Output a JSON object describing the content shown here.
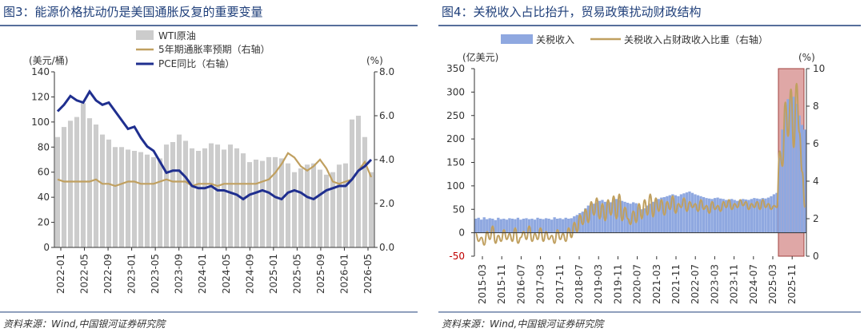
{
  "chart_data": [
    {
      "type": "bar",
      "title": "图3：能源价格扰动仍是美国通胀反复的重要变量",
      "source": "资料来源：Wind,中国银河证券研究院",
      "y_left_unit": "(美元/桶)",
      "y_right_unit": "(%)",
      "ylim_left": [
        0,
        140
      ],
      "ylim_right": [
        0,
        8
      ],
      "left_ticks": [
        "0",
        "20",
        "40",
        "60",
        "80",
        "100",
        "120",
        "140"
      ],
      "right_ticks": [
        "0.0",
        "2.0",
        "4.0",
        "6.0",
        "8.0"
      ],
      "x_tick_labels": [
        "2022-01",
        "2022-05",
        "2022-09",
        "2023-01",
        "2023-05",
        "2023-09",
        "2024-01",
        "2024-05",
        "2024-09",
        "2025-01",
        "2025-05",
        "2025-09",
        "2026-01",
        "2026-05"
      ],
      "legend": [
        "WTI原油",
        "5年期通胀率预期（右轴）",
        "PCE同比（右轴）"
      ],
      "colors": {
        "bars": "#cccccc",
        "breakeven": "#c0a060",
        "pce": "#1f2f8f"
      },
      "series": [
        {
          "name": "WTI原油",
          "axis": "left",
          "kind": "bar",
          "values": [
            88,
            96,
            101,
            104,
            115,
            103,
            98,
            90,
            86,
            80,
            80,
            78,
            77,
            76,
            74,
            72,
            71,
            82,
            84,
            90,
            85,
            79,
            77,
            79,
            83,
            82,
            78,
            82,
            79,
            75,
            68,
            70,
            69,
            72,
            72,
            71,
            67,
            60,
            63,
            66,
            67,
            62,
            58,
            60,
            66,
            67,
            102,
            105,
            88,
            60
          ]
        },
        {
          "name": "5年期通胀率预期（右轴）",
          "axis": "right",
          "kind": "line",
          "values": [
            3.1,
            3.0,
            3.0,
            3.0,
            3.0,
            3.0,
            3.1,
            2.9,
            2.9,
            2.8,
            2.9,
            3.0,
            3.0,
            2.9,
            2.9,
            2.9,
            3.0,
            3.1,
            3.0,
            3.0,
            3.0,
            2.8,
            2.9,
            2.9,
            2.9,
            2.8,
            2.9,
            2.9,
            2.9,
            2.9,
            2.9,
            2.9,
            3.0,
            3.1,
            3.4,
            3.8,
            4.3,
            4.1,
            3.7,
            3.5,
            3.7,
            4.0,
            3.6,
            3.0,
            2.9,
            3.0,
            3.1,
            3.5,
            3.9,
            3.2
          ]
        },
        {
          "name": "PCE同比（右轴）",
          "axis": "right",
          "kind": "line",
          "values": [
            6.2,
            6.5,
            6.9,
            6.7,
            6.6,
            7.1,
            6.7,
            6.5,
            6.6,
            6.2,
            5.8,
            5.4,
            5.5,
            5.0,
            4.6,
            4.4,
            3.9,
            3.4,
            3.5,
            3.5,
            3.2,
            2.8,
            2.7,
            2.7,
            2.8,
            2.6,
            2.6,
            2.5,
            2.4,
            2.2,
            2.4,
            2.5,
            2.6,
            2.5,
            2.3,
            2.2,
            2.5,
            2.6,
            2.5,
            2.3,
            2.2,
            2.4,
            2.6,
            2.7,
            2.8,
            2.8,
            3.1,
            3.5,
            3.7,
            4.0
          ]
        }
      ]
    },
    {
      "type": "bar",
      "title": "图4：关税收入占比抬升，贸易政策扰动财政结构",
      "source": "资料来源：Wind,中国银河证券研究院",
      "y_left_unit": "(亿美元)",
      "y_right_unit": "(%)",
      "ylim_left": [
        -50,
        350
      ],
      "ylim_right": [
        0,
        10
      ],
      "left_ticks": [
        "-50",
        "0",
        "50",
        "100",
        "150",
        "200",
        "250",
        "300",
        "350"
      ],
      "right_ticks": [
        "0",
        "2",
        "4",
        "6",
        "8",
        "10"
      ],
      "x_tick_labels": [
        "2015-03",
        "2015-11",
        "2016-07",
        "2017-03",
        "2017-11",
        "2018-07",
        "2019-03",
        "2019-11",
        "2020-07",
        "2021-03",
        "2021-11",
        "2022-07",
        "2023-03",
        "2023-11",
        "2024-07",
        "2025-03",
        "2025-11"
      ],
      "legend": [
        "关税收入",
        "关税收入占财政收入比重（右轴）"
      ],
      "colors": {
        "bars": "#8fa8e0",
        "ratio": "#c0a060",
        "highlight": "#c0504d"
      },
      "series": [
        {
          "name": "关税收入",
          "axis": "left",
          "kind": "bar",
          "values": [
            30,
            32,
            28,
            33,
            29,
            31,
            30,
            27,
            32,
            29,
            30,
            28,
            31,
            30,
            29,
            32,
            28,
            30,
            31,
            29,
            30,
            28,
            32,
            30,
            29,
            31,
            30,
            28,
            33,
            30,
            31,
            29,
            32,
            30,
            31,
            35,
            38,
            42,
            45,
            52,
            58,
            60,
            62,
            65,
            68,
            70,
            66,
            63,
            65,
            70,
            72,
            70,
            68,
            66,
            64,
            62,
            65,
            63,
            55,
            50,
            52,
            58,
            62,
            66,
            70,
            72,
            75,
            76,
            78,
            80,
            82,
            80,
            78,
            82,
            84,
            86,
            88,
            85,
            82,
            80,
            78,
            76,
            74,
            73,
            72,
            74,
            75,
            73,
            72,
            70,
            71,
            72,
            70,
            68,
            70,
            72,
            71,
            70,
            72,
            74,
            73,
            72,
            74,
            73,
            75,
            78,
            82,
            85,
            160,
            220,
            270,
            285,
            300,
            290,
            275,
            250,
            230,
            220
          ]
        },
        {
          "name": "关税收入占财政收入比重（右轴）",
          "axis": "right",
          "kind": "line",
          "values": [
            1.2,
            0.8,
            1.0,
            0.6,
            1.3,
            0.9,
            1.6,
            0.7,
            1.1,
            0.8,
            1.4,
            0.9,
            1.2,
            0.8,
            1.5,
            0.7,
            1.0,
            1.3,
            0.9,
            1.6,
            0.8,
            1.2,
            0.9,
            1.5,
            0.8,
            1.3,
            0.9,
            1.1,
            0.7,
            1.4,
            0.9,
            1.2,
            0.8,
            1.5,
            1.0,
            1.8,
            1.3,
            2.2,
            1.7,
            2.5,
            1.8,
            2.9,
            2.2,
            3.1,
            2.0,
            2.8,
            1.9,
            3.0,
            2.2,
            3.2,
            2.0,
            3.3,
            1.9,
            2.6,
            2.0,
            1.7,
            2.4,
            1.8,
            2.8,
            2.0,
            3.0,
            2.2,
            3.3,
            2.1,
            3.1,
            2.4,
            3.0,
            2.2,
            2.9,
            2.5,
            3.2,
            2.3,
            2.8,
            2.6,
            3.1,
            2.4,
            2.9,
            2.6,
            2.8,
            2.4,
            3.0,
            2.5,
            2.7,
            2.3,
            2.9,
            2.5,
            2.7,
            2.4,
            2.9,
            2.6,
            3.0,
            2.5,
            2.8,
            2.6,
            3.0,
            2.7,
            2.9,
            2.5,
            2.8,
            2.6,
            2.9,
            2.5,
            3.0,
            2.6,
            2.8,
            2.5,
            2.7,
            2.6,
            5.6,
            4.8,
            8.2,
            6.4,
            8.9,
            5.8,
            9.2,
            6.6,
            4.5,
            2.6
          ]
        }
      ]
    }
  ]
}
